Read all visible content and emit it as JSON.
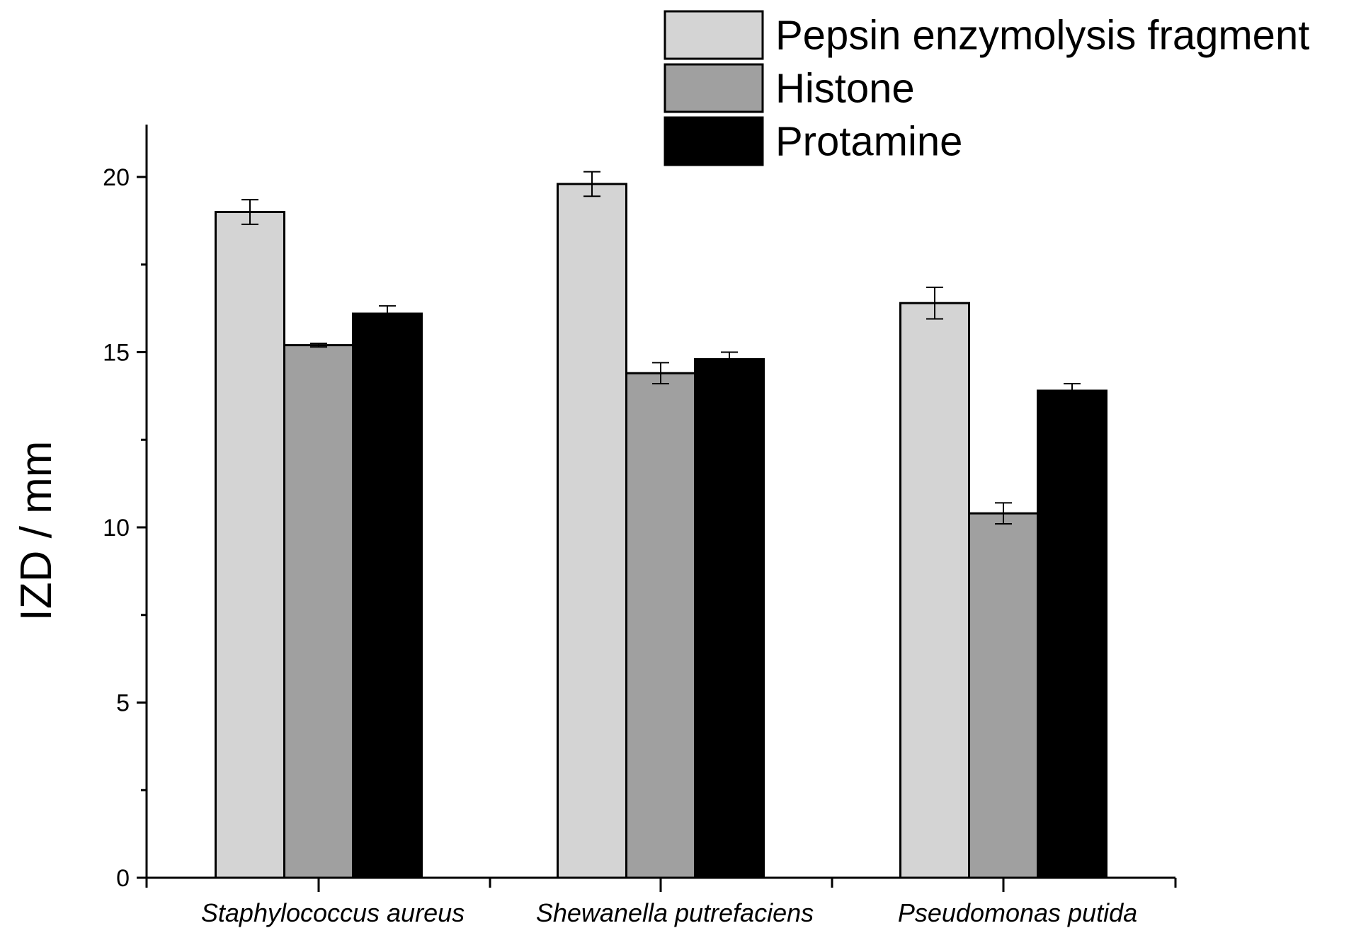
{
  "chart_data": {
    "type": "bar",
    "title": "",
    "xlabel": "",
    "ylabel": "IZD / mm",
    "ylim": [
      0,
      21.5
    ],
    "yticks": [
      0,
      5,
      10,
      15,
      20
    ],
    "ytick_labels": [
      "0",
      "5",
      "10",
      "15",
      "20"
    ],
    "minor_ticks": [
      2.5,
      7.5,
      12.5,
      17.5
    ],
    "grid": false,
    "legend_position": "top-right",
    "categories": [
      "Staphylococcus aureus",
      "Shewanella putrefaciens",
      "Pseudomonas putida"
    ],
    "series": [
      {
        "name": "Pepsin enzymolysis fragment",
        "color": "#d4d4d4",
        "values": [
          19.0,
          19.8,
          16.4
        ],
        "errors": [
          0.35,
          0.35,
          0.45
        ]
      },
      {
        "name": "Histone",
        "color": "#a0a0a0",
        "values": [
          15.2,
          14.4,
          10.4
        ],
        "errors": [
          0.05,
          0.3,
          0.3
        ]
      },
      {
        "name": "Protamine",
        "color": "#000000",
        "values": [
          16.1,
          14.8,
          13.9
        ],
        "errors": [
          0.22,
          0.2,
          0.2
        ]
      }
    ]
  }
}
